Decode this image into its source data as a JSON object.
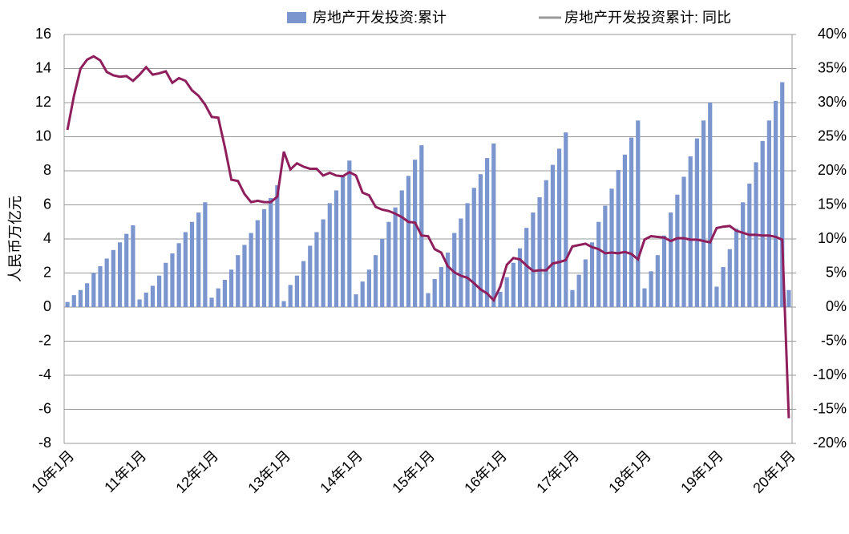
{
  "chart_data": {
    "type": "bar-line",
    "legend": "top",
    "categories": [
      "10年1月",
      null,
      null,
      null,
      null,
      null,
      null,
      null,
      null,
      null,
      null,
      "11年1月",
      null,
      null,
      null,
      null,
      null,
      null,
      null,
      null,
      null,
      null,
      "12年1月",
      null,
      null,
      null,
      null,
      null,
      null,
      null,
      null,
      null,
      null,
      "13年1月",
      null,
      null,
      null,
      null,
      null,
      null,
      null,
      null,
      null,
      null,
      "14年1月",
      null,
      null,
      null,
      null,
      null,
      null,
      null,
      null,
      null,
      null,
      "15年1月",
      null,
      null,
      null,
      null,
      null,
      null,
      null,
      null,
      null,
      null,
      "16年1月",
      null,
      null,
      null,
      null,
      null,
      null,
      null,
      null,
      null,
      null,
      "17年1月",
      null,
      null,
      null,
      null,
      null,
      null,
      null,
      null,
      null,
      null,
      "18年1月",
      null,
      null,
      null,
      null,
      null,
      null,
      null,
      null,
      null,
      null,
      "19年1月",
      null,
      null,
      null,
      null,
      null,
      null,
      null,
      null,
      null,
      null,
      "20年1月"
    ],
    "series": [
      {
        "name": "房地产开发投资:累计",
        "color": "#7b95cf",
        "values": [
          0.3,
          0.7,
          1.0,
          1.4,
          2.0,
          2.4,
          2.85,
          3.35,
          3.8,
          4.3,
          4.8,
          0.45,
          0.85,
          1.25,
          1.85,
          2.6,
          3.15,
          3.75,
          4.4,
          5.0,
          5.55,
          6.15,
          0.55,
          1.1,
          1.6,
          2.2,
          3.05,
          3.65,
          4.35,
          5.1,
          5.75,
          6.4,
          7.15,
          0.35,
          1.3,
          1.85,
          2.7,
          3.6,
          4.4,
          5.15,
          6.1,
          6.85,
          7.7,
          8.6,
          0.75,
          1.5,
          2.2,
          3.05,
          4.0,
          5.0,
          5.85,
          6.85,
          7.7,
          8.65,
          9.5,
          0.82,
          1.65,
          2.35,
          3.2,
          4.35,
          5.2,
          6.1,
          7.0,
          7.8,
          8.75,
          9.6,
          0.9,
          1.75,
          2.6,
          3.45,
          4.65,
          5.55,
          6.45,
          7.45,
          8.35,
          9.3,
          10.25,
          1.0,
          1.9,
          2.8,
          3.8,
          5.0,
          5.95,
          6.95,
          8.05,
          8.95,
          9.95,
          10.95,
          1.1,
          2.1,
          3.05,
          4.2,
          5.55,
          6.6,
          7.65,
          8.85,
          9.9,
          10.95,
          12.0,
          1.2,
          2.35,
          3.4,
          4.6,
          6.15,
          7.25,
          8.5,
          9.75,
          10.95,
          12.1,
          13.2,
          1.0
        ]
      },
      {
        "name": "房地产开发投资累计: 同比",
        "color": "#8e1f5c",
        "axis": "y2",
        "values": [
          26,
          31,
          35,
          36.3,
          36.8,
          36.2,
          34.5,
          34,
          33.8,
          33.9,
          33.2,
          34.1,
          35.2,
          34.1,
          34.3,
          34.6,
          32.9,
          33.6,
          33.2,
          31.8,
          31.0,
          29.7,
          27.9,
          27.8,
          23.5,
          18.7,
          18.5,
          16.6,
          15.4,
          15.6,
          15.4,
          15.4,
          16.2,
          22.8,
          20.2,
          21.1,
          20.6,
          20.3,
          20.3,
          19.3,
          19.7,
          19.3,
          19.2,
          19.8,
          19.3,
          16.8,
          16.4,
          14.7,
          14.3,
          14.1,
          13.7,
          13.2,
          12.5,
          12.4,
          10.5,
          10.4,
          8.5,
          8.0,
          6.0,
          5.1,
          4.6,
          4.3,
          3.5,
          2.6,
          2.0,
          1.0,
          3.0,
          6.2,
          7.2,
          7.0,
          6.1,
          5.3,
          5.4,
          5.4,
          6.4,
          6.6,
          6.9,
          8.9,
          9.1,
          9.3,
          8.8,
          8.5,
          7.9,
          8.0,
          7.9,
          8.1,
          7.8,
          7.0,
          9.9,
          10.4,
          10.3,
          10.2,
          9.7,
          10.1,
          10.1,
          9.9,
          9.9,
          9.7,
          9.5,
          11.6,
          11.8,
          11.9,
          11.2,
          10.9,
          10.6,
          10.6,
          10.5,
          10.5,
          10.3,
          9.9,
          -16.3
        ]
      }
    ],
    "ylabel": "人民币万亿元",
    "ylim": [
      -8,
      16
    ],
    "yticks": [
      -8,
      -6,
      -4,
      -2,
      0,
      2,
      4,
      6,
      8,
      10,
      12,
      14,
      16
    ],
    "y2lim": [
      -20,
      40
    ],
    "y2ticks": [
      {
        "value": -20,
        "label": "-20%"
      },
      {
        "value": -15,
        "label": "-15%"
      },
      {
        "value": -10,
        "label": "-10%"
      },
      {
        "value": -5,
        "label": "-5%"
      },
      {
        "value": 0,
        "label": "0%"
      },
      {
        "value": 5,
        "label": "5%"
      },
      {
        "value": 10,
        "label": "10%"
      },
      {
        "value": 15,
        "label": "15%"
      },
      {
        "value": 20,
        "label": "20%"
      },
      {
        "value": 25,
        "label": "25%"
      },
      {
        "value": 30,
        "label": "30%"
      },
      {
        "value": 35,
        "label": "35%"
      },
      {
        "value": 40,
        "label": "40%"
      }
    ],
    "grid": true
  }
}
